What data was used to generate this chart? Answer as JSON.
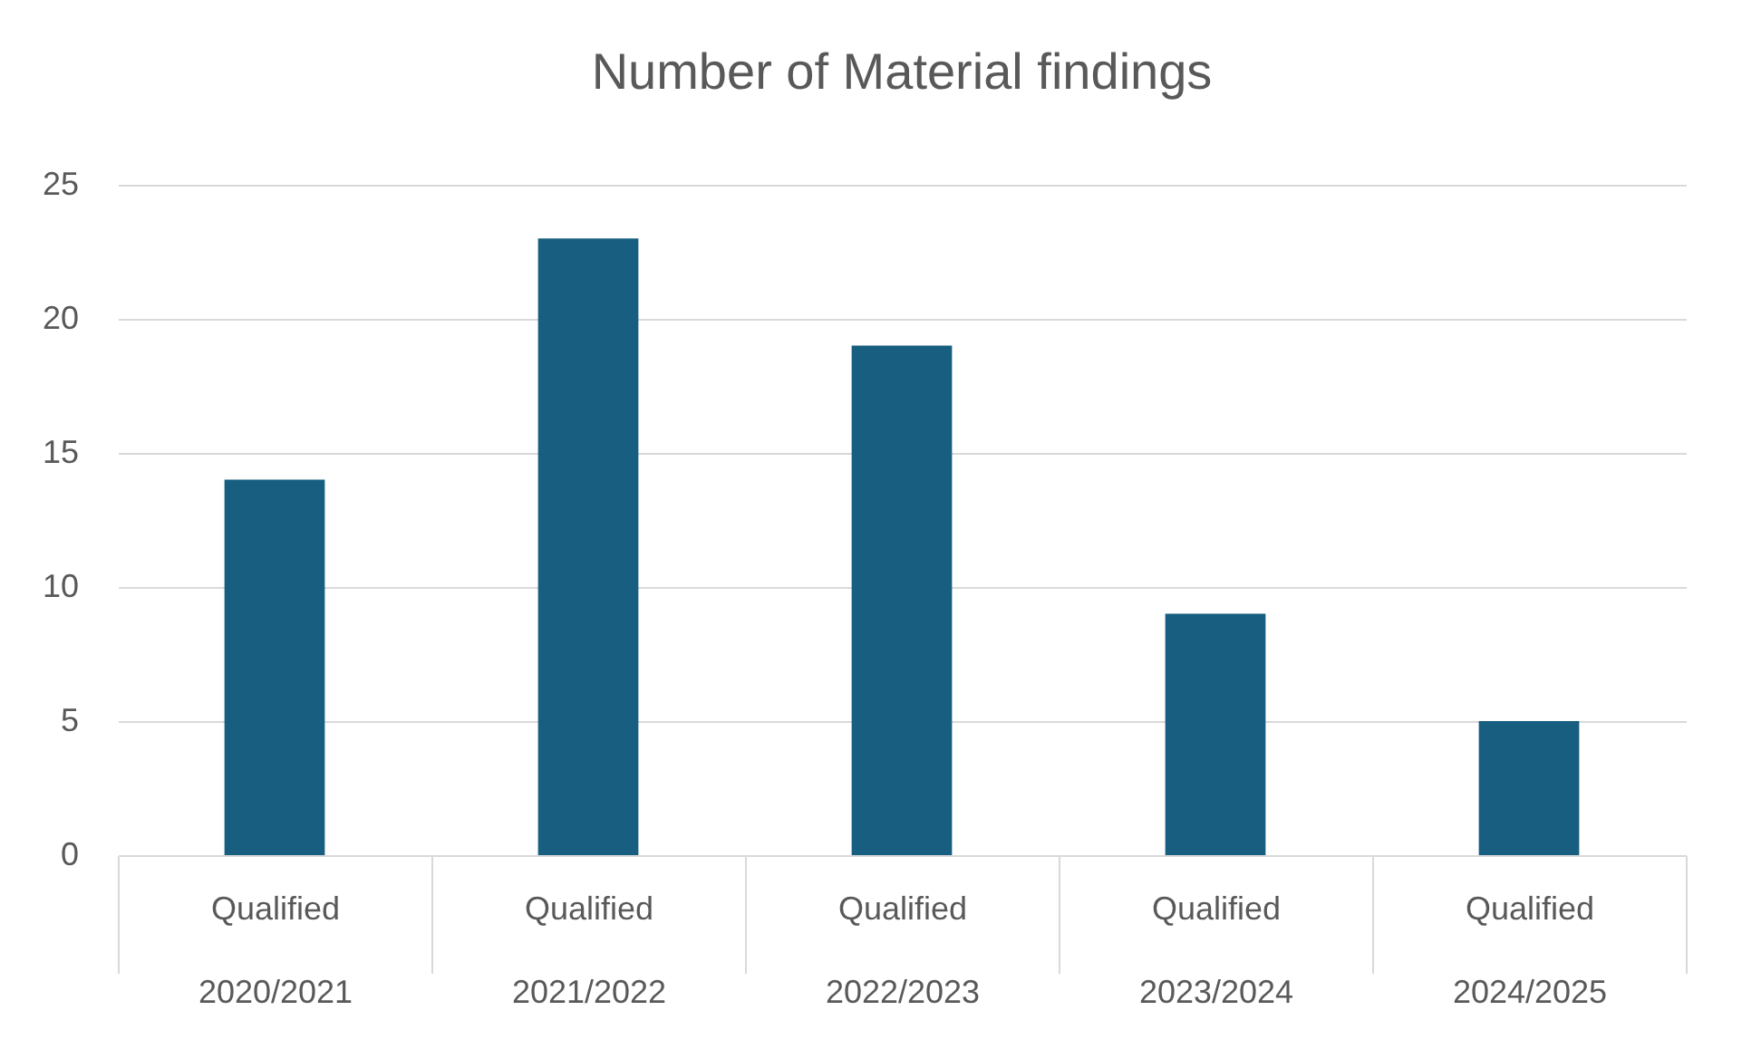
{
  "chart_data": {
    "type": "bar",
    "title": "Number of Material findings",
    "categories": [
      "Qualified\n2020/2021",
      "Qualified\n2021/2022",
      "Qualified\n2022/2023",
      "Qualified\n2023/2024",
      "Qualified\n2024/2025"
    ],
    "values": [
      14,
      23,
      19,
      9,
      5
    ],
    "color": "#175e80",
    "ylim": [
      0,
      25
    ],
    "yticks": [
      0,
      5,
      10,
      15,
      20,
      25
    ],
    "grid": "y"
  }
}
